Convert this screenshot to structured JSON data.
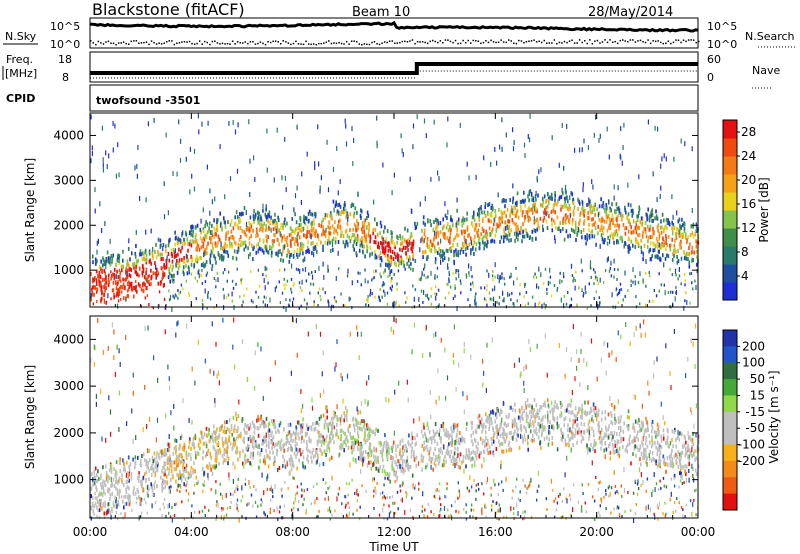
{
  "header": {
    "station": "Blackstone (fitACF)",
    "beam": "Beam 10",
    "date": "28/May/2014"
  },
  "params": {
    "nsky_label": "N.Sky",
    "nsearch_label": "N.Search",
    "noise_ticks": [
      "10^5",
      "10^0"
    ],
    "freq_label_1": "Freq.",
    "freq_label_2": "[MHz]",
    "freq_ticks": [
      "18",
      "8"
    ],
    "nave_label": "Nave",
    "nave_ticks": [
      "60",
      "0"
    ],
    "cpid_label": "CPID",
    "cpid_value": "twofsound -3501"
  },
  "colors": {
    "power": [
      "#1f2fd6",
      "#1f4fa0",
      "#2a7a6a",
      "#3f8f4a",
      "#86c34a",
      "#e8d21c",
      "#f5a21a",
      "#f47a14",
      "#f04a10",
      "#e61010"
    ],
    "velocity": [
      "#2233aa",
      "#2255cc",
      "#2f6f3f",
      "#47a83a",
      "#8fd94a",
      "#bfbfbf",
      "#bfbfbf",
      "#f5b01a",
      "#f58a18",
      "#f15a14",
      "#e41010"
    ]
  },
  "chart_data": [
    {
      "type": "heatmap",
      "name": "power",
      "ylabel": "Slant Range [km]",
      "xlabel": "",
      "x_ticks": [
        "00:00",
        "04:00",
        "08:00",
        "12:00",
        "16:00",
        "20:00",
        "00:00"
      ],
      "y_ticks": [
        1000,
        2000,
        3000,
        4000
      ],
      "ylim": [
        180,
        4500
      ],
      "xlim_hours": [
        0,
        24
      ],
      "colorbar_label": "Power [dB]",
      "colorbar_ticks": [
        4,
        8,
        12,
        16,
        20,
        24,
        28
      ],
      "colorbar_range": [
        0,
        30
      ],
      "echo_band": {
        "hours": [
          0,
          1,
          2,
          3,
          4,
          5,
          6,
          7,
          8,
          9,
          10,
          11,
          12,
          13,
          14,
          15,
          16,
          17,
          18,
          19,
          20,
          21,
          22,
          23,
          24
        ],
        "center_km": [
          800,
          900,
          1050,
          1250,
          1500,
          1750,
          1900,
          1850,
          1700,
          1900,
          2100,
          1800,
          1400,
          1700,
          1800,
          1850,
          2100,
          2200,
          2300,
          2250,
          2150,
          2000,
          1850,
          1700,
          1550
        ]
      }
    },
    {
      "type": "heatmap",
      "name": "velocity",
      "ylabel": "Slant Range [km]",
      "xlabel": "Time UT",
      "x_ticks": [
        "00:00",
        "04:00",
        "08:00",
        "12:00",
        "16:00",
        "20:00",
        "00:00"
      ],
      "y_ticks": [
        1000,
        2000,
        3000,
        4000
      ],
      "ylim": [
        180,
        4500
      ],
      "xlim_hours": [
        0,
        24
      ],
      "colorbar_label": "Velocity [m s⁻¹]",
      "colorbar_ticks": [
        200,
        100,
        50,
        15,
        -15,
        -50,
        -100,
        -200
      ]
    }
  ]
}
